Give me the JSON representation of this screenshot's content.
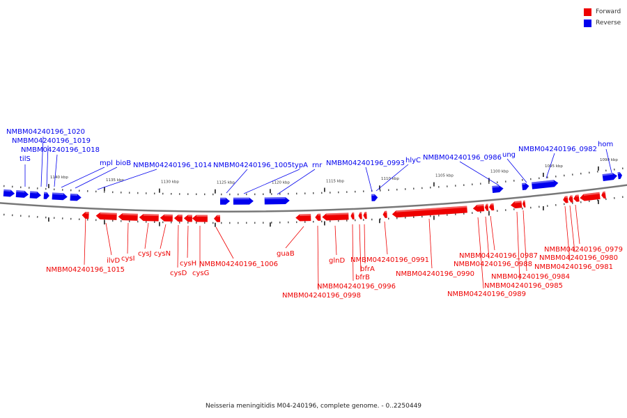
{
  "caption": "Neisseria meningitidis M04-240196, complete genome. - 0..2250449",
  "colors": {
    "forward": "#ee0000",
    "reverse": "#0000ee",
    "backbone": "#777777"
  },
  "legend": [
    {
      "label": "Forward",
      "color": "#ee0000"
    },
    {
      "label": "Reverse",
      "color": "#0000ee"
    }
  ],
  "ticks": {
    "labels": [
      "1140 kbp",
      "1135 kbp",
      "1130 kbp",
      "1125 kbp",
      "1120 kbp",
      "1115 kbp",
      "1110 kbp",
      "1105 kbp",
      "1100 kbp",
      "1095 kbp",
      "1090 kbp"
    ]
  },
  "reverse_genes": [
    "tilS",
    "NMBM04240196_1020",
    "NMBM04240196_1019",
    "NMBM04240196_1018",
    "mpl",
    "bioB",
    "NMBM04240196_1014",
    "NMBM04240196_1005",
    "typA",
    "rnr",
    "NMBM04240196_0993",
    "hlyC",
    "NMBM04240196_0986",
    "ung",
    "NMBM04240196_0982",
    "hom"
  ],
  "forward_genes": [
    "NMBM04240196_1015",
    "ilvD",
    "cysI",
    "cysJ",
    "cysN",
    "cysD",
    "cysH",
    "cysG",
    "NMBM04240196_1006",
    "guaB",
    "NMBM04240196_0998",
    "glnD",
    "NMBM04240196_0996",
    "bfrB",
    "bfrA",
    "NMBM04240196_0991",
    "NMBM04240196_0990",
    "NMBM04240196_0989",
    "NMBM04240196_0988",
    "NMBM04240196_0987",
    "NMBM04240196_0985",
    "NMBM04240196_0984",
    "NMBM04240196_0981",
    "NMBM04240196_0980",
    "NMBM04240196_0979"
  ]
}
